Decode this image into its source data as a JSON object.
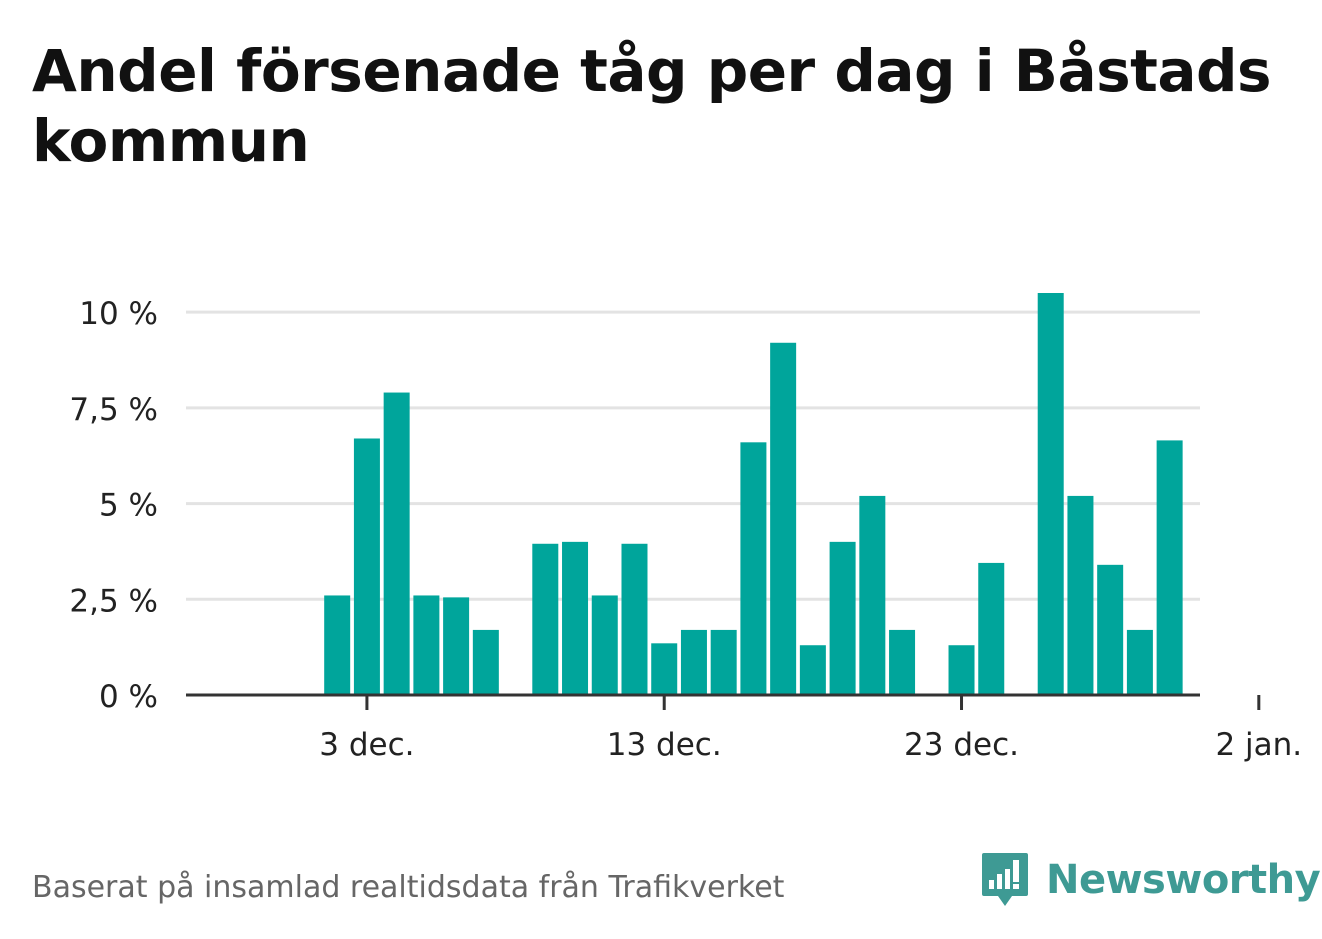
{
  "title": "Andel försenade tåg per dag i Båstads kommun",
  "chart_data": {
    "type": "bar",
    "title": "Andel försenade tåg per dag i Båstads kommun",
    "xlabel": "",
    "ylabel": "",
    "ylim": [
      0,
      10.5
    ],
    "y_ticks": [
      {
        "value": 0,
        "label": "0 %"
      },
      {
        "value": 2.5,
        "label": "2,5 %"
      },
      {
        "value": 5,
        "label": "5 %"
      },
      {
        "value": 7.5,
        "label": "7,5 %"
      },
      {
        "value": 10,
        "label": "10 %"
      }
    ],
    "x_ticks": [
      {
        "date": "2023-12-03",
        "label": "3 dec."
      },
      {
        "date": "2023-12-13",
        "label": "13 dec."
      },
      {
        "date": "2023-12-23",
        "label": "23 dec."
      },
      {
        "date": "2024-01-02",
        "label": "2 jan."
      }
    ],
    "grid": true,
    "legend": "none",
    "bar_color": "#00a59b",
    "points": [
      {
        "date": "2023-11-29",
        "value": null
      },
      {
        "date": "2023-11-30",
        "value": null
      },
      {
        "date": "2023-12-01",
        "value": null
      },
      {
        "date": "2023-12-02",
        "value": 2.6
      },
      {
        "date": "2023-12-03",
        "value": 6.7
      },
      {
        "date": "2023-12-04",
        "value": 7.9
      },
      {
        "date": "2023-12-05",
        "value": 2.6
      },
      {
        "date": "2023-12-06",
        "value": 2.55
      },
      {
        "date": "2023-12-07",
        "value": 1.7
      },
      {
        "date": "2023-12-08",
        "value": null
      },
      {
        "date": "2023-12-09",
        "value": 3.95
      },
      {
        "date": "2023-12-10",
        "value": 4.0
      },
      {
        "date": "2023-12-11",
        "value": 2.6
      },
      {
        "date": "2023-12-12",
        "value": 3.95
      },
      {
        "date": "2023-12-13",
        "value": 1.35
      },
      {
        "date": "2023-12-14",
        "value": 1.7
      },
      {
        "date": "2023-12-15",
        "value": 1.7
      },
      {
        "date": "2023-12-16",
        "value": 6.6
      },
      {
        "date": "2023-12-17",
        "value": 9.2
      },
      {
        "date": "2023-12-18",
        "value": 1.3
      },
      {
        "date": "2023-12-19",
        "value": 4.0
      },
      {
        "date": "2023-12-20",
        "value": 5.2
      },
      {
        "date": "2023-12-21",
        "value": 1.7
      },
      {
        "date": "2023-12-22",
        "value": null
      },
      {
        "date": "2023-12-23",
        "value": 1.3
      },
      {
        "date": "2023-12-24",
        "value": 3.45
      },
      {
        "date": "2023-12-25",
        "value": null
      },
      {
        "date": "2023-12-26",
        "value": 10.5
      },
      {
        "date": "2023-12-27",
        "value": 5.2
      },
      {
        "date": "2023-12-28",
        "value": 3.4
      },
      {
        "date": "2023-12-29",
        "value": 1.7
      },
      {
        "date": "2023-12-30",
        "value": 6.65
      },
      {
        "date": "2023-12-31",
        "value": null
      },
      {
        "date": "2024-01-01",
        "value": null
      },
      {
        "date": "2024-01-02",
        "value": null
      }
    ]
  },
  "footer": {
    "source": "Baserat på insamlad realtidsdata från Trafikverket",
    "brand": "Newsworthy",
    "brand_icon": "newsworthy-logo-icon"
  },
  "colors": {
    "bar": "#00a59b",
    "grid": "#e3e3e3",
    "axis": "#333333",
    "brand": "#3e9a94"
  }
}
